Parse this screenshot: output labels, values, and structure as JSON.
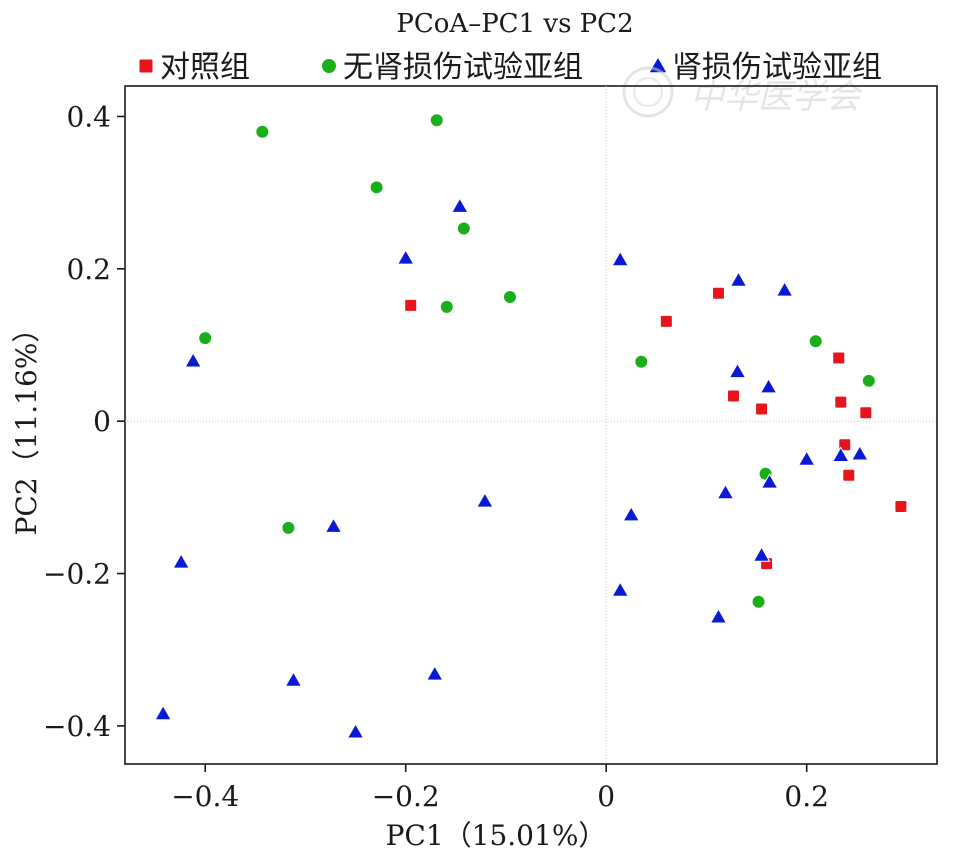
{
  "chart_data": {
    "type": "scatter",
    "title": "PCoA–PC1 vs PC2",
    "xlabel": "PC1（15.01%）",
    "ylabel": "PC2（11.16%）",
    "xlim": [
      -0.48,
      0.33
    ],
    "ylim": [
      -0.45,
      0.44
    ],
    "x_ticks": [
      -0.4,
      -0.2,
      0,
      0.2
    ],
    "x_tick_labels": [
      "−0.4",
      "−0.2",
      "0",
      "0.2"
    ],
    "y_ticks": [
      -0.4,
      -0.2,
      0,
      0.2,
      0.4
    ],
    "y_tick_labels": [
      "−0.4",
      "−0.2",
      "0",
      "0.2",
      "0.4"
    ],
    "zero_lines": true,
    "legend_position": "top",
    "series": [
      {
        "name": "对照组",
        "marker": "square",
        "color": "#e8141c",
        "points": [
          [
            -0.195,
            0.152
          ],
          [
            0.06,
            0.131
          ],
          [
            0.112,
            0.168
          ],
          [
            0.127,
            0.033
          ],
          [
            0.155,
            0.016
          ],
          [
            0.232,
            0.083
          ],
          [
            0.234,
            0.025
          ],
          [
            0.259,
            0.011
          ],
          [
            0.238,
            -0.031
          ],
          [
            0.242,
            -0.071
          ],
          [
            0.294,
            -0.112
          ],
          [
            0.16,
            -0.187
          ]
        ]
      },
      {
        "name": "无肾损伤试验亚组",
        "marker": "circle",
        "color": "#1aae1a",
        "points": [
          [
            -0.343,
            0.38
          ],
          [
            -0.169,
            0.395
          ],
          [
            -0.229,
            0.307
          ],
          [
            -0.142,
            0.253
          ],
          [
            -0.159,
            0.15
          ],
          [
            -0.096,
            0.163
          ],
          [
            -0.4,
            0.109
          ],
          [
            0.035,
            0.078
          ],
          [
            0.209,
            0.105
          ],
          [
            0.262,
            0.053
          ],
          [
            0.159,
            -0.069
          ],
          [
            -0.317,
            -0.14
          ],
          [
            0.152,
            -0.237
          ]
        ]
      },
      {
        "name": "肾损伤试验亚组",
        "marker": "triangle",
        "color": "#0a1ad4",
        "points": [
          [
            -0.146,
            0.282
          ],
          [
            -0.2,
            0.214
          ],
          [
            0.014,
            0.212
          ],
          [
            0.132,
            0.185
          ],
          [
            0.178,
            0.172
          ],
          [
            -0.412,
            0.079
          ],
          [
            0.131,
            0.065
          ],
          [
            0.162,
            0.045
          ],
          [
            0.2,
            -0.05
          ],
          [
            0.234,
            -0.045
          ],
          [
            0.253,
            -0.043
          ],
          [
            0.163,
            -0.08
          ],
          [
            0.119,
            -0.094
          ],
          [
            -0.121,
            -0.105
          ],
          [
            0.025,
            -0.123
          ],
          [
            -0.272,
            -0.138
          ],
          [
            0.155,
            -0.176
          ],
          [
            -0.424,
            -0.185
          ],
          [
            0.014,
            -0.222
          ],
          [
            0.112,
            -0.257
          ],
          [
            -0.312,
            -0.34
          ],
          [
            -0.171,
            -0.332
          ],
          [
            -0.442,
            -0.384
          ],
          [
            -0.25,
            -0.408
          ]
        ]
      }
    ]
  }
}
